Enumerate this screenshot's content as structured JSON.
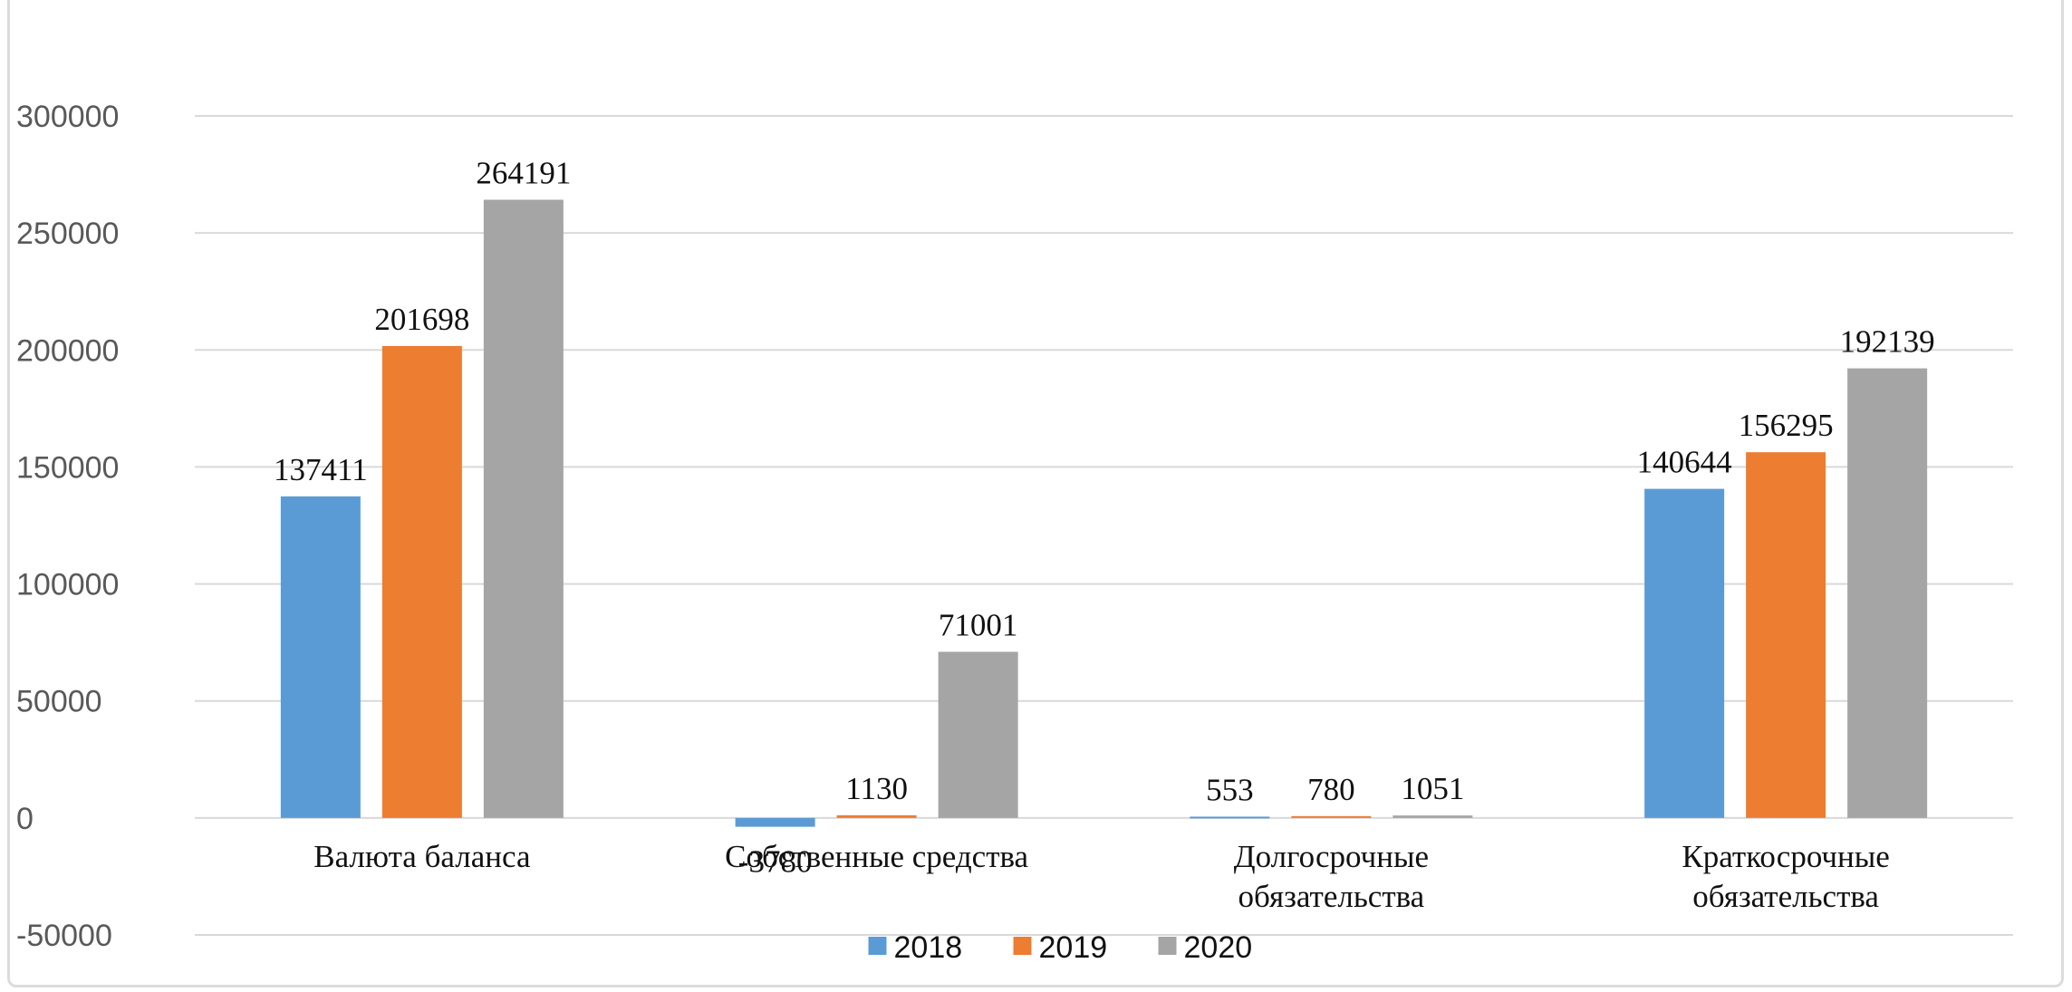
{
  "chart_data": {
    "type": "bar",
    "title": "",
    "xlabel": "",
    "ylabel": "",
    "categories": [
      [
        "Валюта баланса"
      ],
      [
        "Собственные средства"
      ],
      [
        "Долгосрочные",
        "обязательства"
      ],
      [
        "Краткосрочные",
        "обязательства"
      ]
    ],
    "series": [
      {
        "name": "2018",
        "color": "#5B9BD5",
        "values": [
          137411,
          -3780,
          553,
          140644
        ]
      },
      {
        "name": "2019",
        "color": "#ED7D31",
        "values": [
          201698,
          1130,
          780,
          156295
        ]
      },
      {
        "name": "2020",
        "color": "#A5A5A5",
        "values": [
          264191,
          71001,
          1051,
          192139
        ]
      }
    ],
    "ylim": [
      -50000,
      300000
    ],
    "yticks": [
      -50000,
      0,
      50000,
      100000,
      150000,
      200000,
      250000,
      300000
    ],
    "grid": true,
    "legend_position": "bottom"
  }
}
